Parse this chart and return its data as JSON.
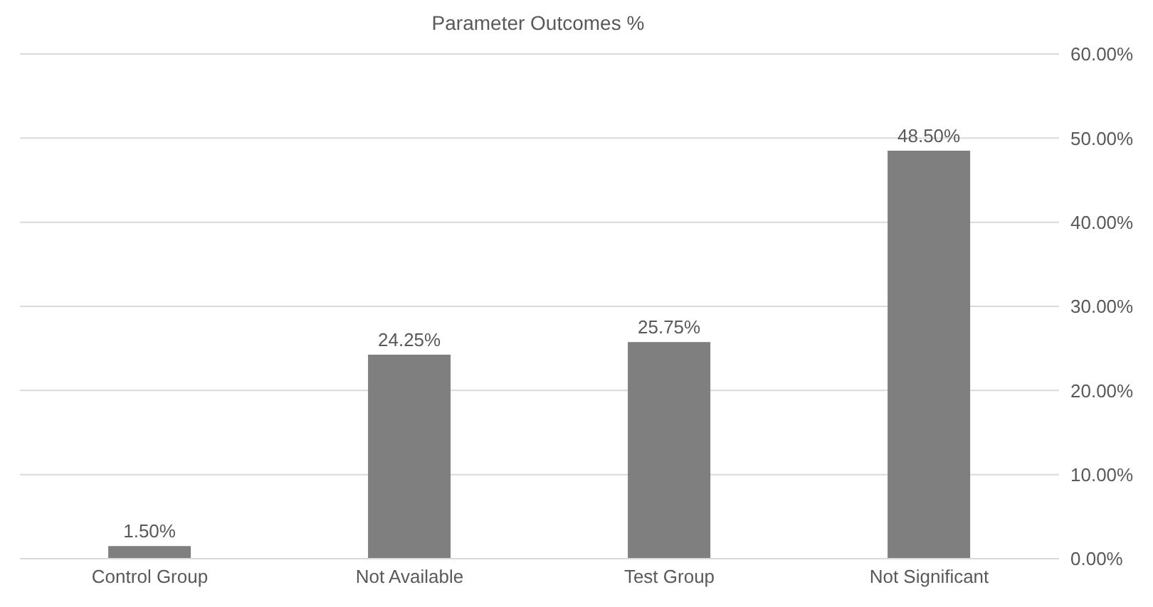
{
  "chart_data": {
    "type": "bar",
    "title": "Parameter Outcomes %",
    "categories": [
      "Control Group",
      "Not Available",
      "Test Group",
      "Not Significant"
    ],
    "values": [
      1.5,
      24.25,
      25.75,
      48.5
    ],
    "value_labels": [
      "1.50%",
      "24.25%",
      "25.75%",
      "48.50%"
    ],
    "color": "#7f7f7f",
    "ylim": [
      0,
      60
    ],
    "yticks": [
      {
        "value": 0,
        "label": "0.00%"
      },
      {
        "value": 10,
        "label": "10.00%"
      },
      {
        "value": 20,
        "label": "20.00%"
      },
      {
        "value": 30,
        "label": "30.00%"
      },
      {
        "value": 40,
        "label": "40.00%"
      },
      {
        "value": 50,
        "label": "50.00%"
      },
      {
        "value": 60,
        "label": "60.00%"
      }
    ],
    "grid": "y"
  }
}
